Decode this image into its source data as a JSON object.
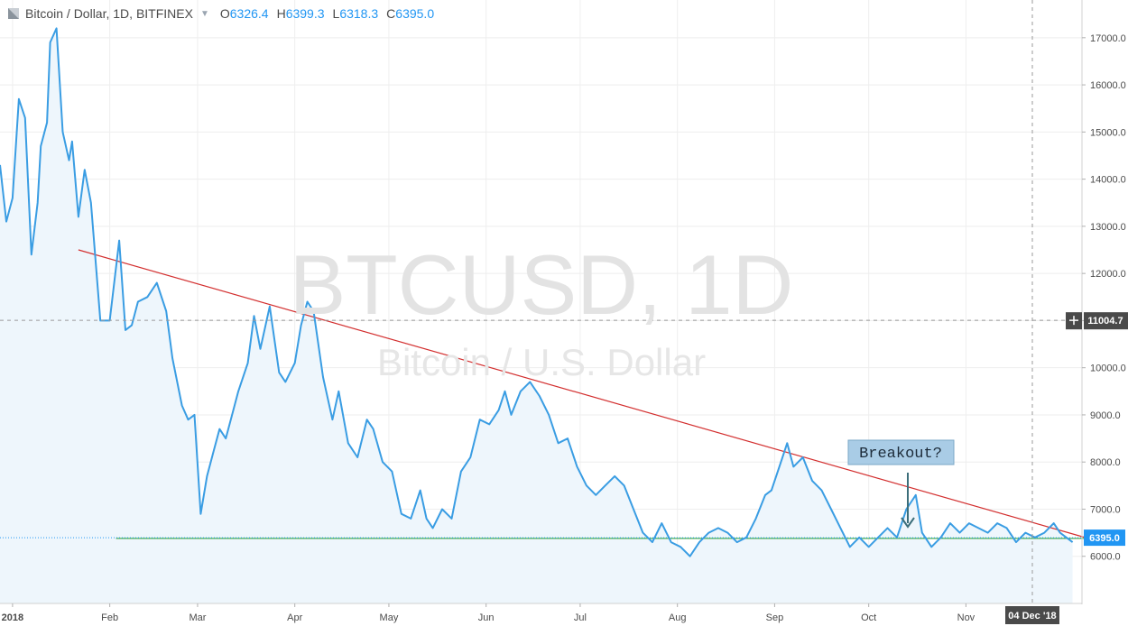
{
  "header": {
    "title": "Bitcoin / Dollar, 1D, BITFINEX",
    "ohlc": [
      {
        "label": "O",
        "value": "6326.4"
      },
      {
        "label": "H",
        "value": "6399.3"
      },
      {
        "label": "L",
        "value": "6318.3"
      },
      {
        "label": "C",
        "value": "6395.0"
      }
    ]
  },
  "watermark": {
    "symbol": "BTCUSD, 1D",
    "name": "Bitcoin / U.S. Dollar"
  },
  "annotation": {
    "text": "Breakout?"
  },
  "crosshair": {
    "price_label": "11004.7",
    "date_label": "04 Dec '18"
  },
  "last_price_label": "6395.0",
  "colors": {
    "line": "#3a9de3",
    "fill": "#eef6fc",
    "trendline": "#d32f2f",
    "support": "#4caf50",
    "last_price": "#2196f3",
    "annotation_bg": "#a9cce6"
  },
  "chart_data": {
    "type": "line",
    "ylim": [
      5000,
      17800
    ],
    "y_ticks": [
      6000,
      7000,
      8000,
      9000,
      10000,
      11000,
      12000,
      13000,
      14000,
      15000,
      16000,
      17000
    ],
    "y_tick_labels": [
      "6000.0",
      "7000.0",
      "8000.0",
      "9000.0",
      "10000.0",
      "11000.0",
      "12000.0",
      "13000.0",
      "14000.0",
      "15000.0",
      "16000.0",
      "17000.0"
    ],
    "x_range": [
      "2017-12-28",
      "2018-12-08"
    ],
    "x_ticks": [
      {
        "date": "2018-01-01",
        "label": "2018"
      },
      {
        "date": "2018-02-01",
        "label": "Feb"
      },
      {
        "date": "2018-03-01",
        "label": "Mar"
      },
      {
        "date": "2018-04-01",
        "label": "Apr"
      },
      {
        "date": "2018-05-01",
        "label": "May"
      },
      {
        "date": "2018-06-01",
        "label": "Jun"
      },
      {
        "date": "2018-07-01",
        "label": "Jul"
      },
      {
        "date": "2018-08-01",
        "label": "Aug"
      },
      {
        "date": "2018-09-01",
        "label": "Sep"
      },
      {
        "date": "2018-10-01",
        "label": "Oct"
      },
      {
        "date": "2018-11-01",
        "label": "Nov"
      }
    ],
    "series": [
      {
        "points": [
          [
            "2017-12-28",
            14300
          ],
          [
            "2017-12-30",
            13100
          ],
          [
            "2018-01-01",
            13600
          ],
          [
            "2018-01-03",
            15700
          ],
          [
            "2018-01-05",
            15300
          ],
          [
            "2018-01-07",
            12400
          ],
          [
            "2018-01-09",
            13500
          ],
          [
            "2018-01-10",
            14700
          ],
          [
            "2018-01-12",
            15200
          ],
          [
            "2018-01-13",
            16900
          ],
          [
            "2018-01-15",
            17200
          ],
          [
            "2018-01-17",
            15000
          ],
          [
            "2018-01-19",
            14400
          ],
          [
            "2018-01-20",
            14800
          ],
          [
            "2018-01-22",
            13200
          ],
          [
            "2018-01-24",
            14200
          ],
          [
            "2018-01-26",
            13500
          ],
          [
            "2018-01-29",
            11000
          ],
          [
            "2018-02-01",
            11000
          ],
          [
            "2018-02-04",
            12700
          ],
          [
            "2018-02-06",
            10800
          ],
          [
            "2018-02-08",
            10900
          ],
          [
            "2018-02-10",
            11400
          ],
          [
            "2018-02-13",
            11500
          ],
          [
            "2018-02-16",
            11800
          ],
          [
            "2018-02-19",
            11200
          ],
          [
            "2018-02-21",
            10200
          ],
          [
            "2018-02-24",
            9200
          ],
          [
            "2018-02-26",
            8900
          ],
          [
            "2018-02-28",
            9000
          ],
          [
            "2018-03-02",
            6900
          ],
          [
            "2018-03-04",
            7700
          ],
          [
            "2018-03-06",
            8200
          ],
          [
            "2018-03-08",
            8700
          ],
          [
            "2018-03-10",
            8500
          ],
          [
            "2018-03-12",
            9000
          ],
          [
            "2018-03-14",
            9500
          ],
          [
            "2018-03-17",
            10100
          ],
          [
            "2018-03-19",
            11100
          ],
          [
            "2018-03-21",
            10400
          ],
          [
            "2018-03-24",
            11300
          ],
          [
            "2018-03-27",
            9900
          ],
          [
            "2018-03-29",
            9700
          ],
          [
            "2018-04-01",
            10100
          ],
          [
            "2018-04-03",
            10900
          ],
          [
            "2018-04-05",
            11400
          ],
          [
            "2018-04-07",
            11200
          ],
          [
            "2018-04-10",
            9800
          ],
          [
            "2018-04-13",
            8900
          ],
          [
            "2018-04-15",
            9500
          ],
          [
            "2018-04-18",
            8400
          ],
          [
            "2018-04-21",
            8100
          ],
          [
            "2018-04-24",
            8900
          ],
          [
            "2018-04-26",
            8700
          ],
          [
            "2018-04-29",
            8000
          ],
          [
            "2018-05-02",
            7800
          ],
          [
            "2018-05-05",
            6900
          ],
          [
            "2018-05-08",
            6800
          ],
          [
            "2018-05-11",
            7400
          ],
          [
            "2018-05-13",
            6800
          ],
          [
            "2018-05-15",
            6600
          ],
          [
            "2018-05-18",
            7000
          ],
          [
            "2018-05-21",
            6800
          ],
          [
            "2018-05-24",
            7800
          ],
          [
            "2018-05-27",
            8100
          ],
          [
            "2018-05-30",
            8900
          ],
          [
            "2018-06-02",
            8800
          ],
          [
            "2018-06-05",
            9100
          ],
          [
            "2018-06-07",
            9500
          ],
          [
            "2018-06-09",
            9000
          ],
          [
            "2018-06-12",
            9500
          ],
          [
            "2018-06-15",
            9700
          ],
          [
            "2018-06-18",
            9400
          ],
          [
            "2018-06-21",
            9000
          ],
          [
            "2018-06-24",
            8400
          ],
          [
            "2018-06-27",
            8500
          ],
          [
            "2018-06-30",
            7900
          ],
          [
            "2018-07-03",
            7500
          ],
          [
            "2018-07-06",
            7300
          ],
          [
            "2018-07-09",
            7500
          ],
          [
            "2018-07-12",
            7700
          ],
          [
            "2018-07-15",
            7500
          ],
          [
            "2018-07-18",
            7000
          ],
          [
            "2018-07-21",
            6500
          ],
          [
            "2018-07-24",
            6300
          ],
          [
            "2018-07-27",
            6700
          ],
          [
            "2018-07-30",
            6300
          ],
          [
            "2018-08-02",
            6200
          ],
          [
            "2018-08-05",
            6000
          ],
          [
            "2018-08-08",
            6300
          ],
          [
            "2018-08-11",
            6500
          ],
          [
            "2018-08-14",
            6600
          ],
          [
            "2018-08-17",
            6500
          ],
          [
            "2018-08-20",
            6300
          ],
          [
            "2018-08-23",
            6400
          ],
          [
            "2018-08-26",
            6800
          ],
          [
            "2018-08-29",
            7300
          ],
          [
            "2018-08-31",
            7400
          ],
          [
            "2018-09-03",
            8000
          ],
          [
            "2018-09-05",
            8400
          ],
          [
            "2018-09-07",
            7900
          ],
          [
            "2018-09-10",
            8100
          ],
          [
            "2018-09-13",
            7600
          ],
          [
            "2018-09-16",
            7400
          ],
          [
            "2018-09-19",
            7000
          ],
          [
            "2018-09-22",
            6600
          ],
          [
            "2018-09-25",
            6200
          ],
          [
            "2018-09-28",
            6400
          ],
          [
            "2018-10-01",
            6200
          ],
          [
            "2018-10-04",
            6400
          ],
          [
            "2018-10-07",
            6600
          ],
          [
            "2018-10-10",
            6400
          ],
          [
            "2018-10-13",
            7000
          ],
          [
            "2018-10-16",
            7300
          ],
          [
            "2018-10-18",
            6500
          ],
          [
            "2018-10-21",
            6200
          ],
          [
            "2018-10-24",
            6400
          ],
          [
            "2018-10-27",
            6700
          ],
          [
            "2018-10-30",
            6500
          ],
          [
            "2018-11-02",
            6700
          ],
          [
            "2018-11-05",
            6600
          ],
          [
            "2018-11-08",
            6500
          ],
          [
            "2018-11-11",
            6700
          ],
          [
            "2018-11-14",
            6600
          ],
          [
            "2018-11-17",
            6300
          ],
          [
            "2018-11-20",
            6500
          ],
          [
            "2018-11-23",
            6400
          ],
          [
            "2018-11-26",
            6500
          ],
          [
            "2018-11-29",
            6700
          ],
          [
            "2018-12-01",
            6500
          ],
          [
            "2018-12-03",
            6400
          ],
          [
            "2018-12-05",
            6300
          ]
        ]
      }
    ],
    "trendline": {
      "from": [
        "2018-01-22",
        12500
      ],
      "to": [
        "2018-12-10",
        6380
      ]
    },
    "support_line": {
      "from": [
        "2018-02-03",
        6380
      ],
      "to": [
        "2018-12-10",
        6380
      ]
    },
    "last_price": 6395.0,
    "crosshair_price": 11004.7
  }
}
